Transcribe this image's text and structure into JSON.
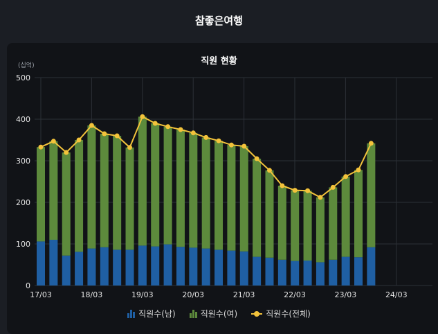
{
  "header": {
    "title": "참좋은여행"
  },
  "chart_data": {
    "type": "bar",
    "stacked": true,
    "title": "직원 현황",
    "unit": "(십억)",
    "ylim": [
      0,
      500
    ],
    "yticks": [
      0,
      100,
      200,
      300,
      400,
      500
    ],
    "xticks": [
      "17/03",
      "18/03",
      "19/03",
      "20/03",
      "21/03",
      "22/03",
      "23/03",
      "24/03"
    ],
    "grid": true,
    "legend_position": "bottom",
    "colors": {
      "male": "#1f5fa3",
      "female": "#5d8a3c",
      "total": "#f3c33b"
    },
    "series": [
      {
        "name": "직원수(남)",
        "kind": "bar",
        "values": [
          106,
          110,
          72,
          81,
          89,
          92,
          86,
          86,
          96,
          94,
          99,
          93,
          91,
          89,
          86,
          84,
          82,
          69,
          67,
          62,
          59,
          60,
          56,
          62,
          69,
          68,
          92
        ]
      },
      {
        "name": "직원수(여)",
        "kind": "bar",
        "values": [
          227,
          237,
          248,
          269,
          296,
          273,
          274,
          246,
          310,
          296,
          283,
          282,
          276,
          267,
          262,
          254,
          253,
          236,
          210,
          178,
          170,
          168,
          156,
          174,
          193,
          210,
          250
        ]
      },
      {
        "name": "직원수(전체)",
        "kind": "line",
        "values": [
          333,
          347,
          320,
          350,
          385,
          365,
          360,
          332,
          406,
          390,
          382,
          375,
          367,
          356,
          348,
          338,
          335,
          305,
          277,
          240,
          229,
          228,
          212,
          236,
          262,
          278,
          342
        ]
      }
    ]
  }
}
